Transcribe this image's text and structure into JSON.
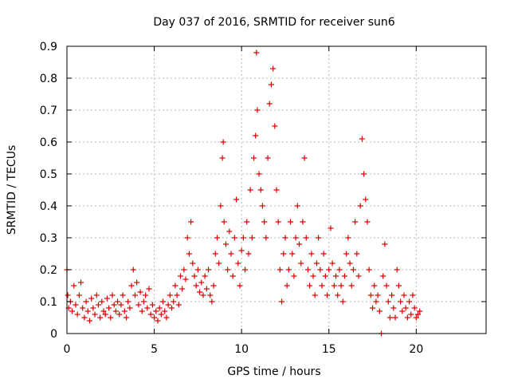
{
  "chart_data": {
    "type": "scatter",
    "title": "Day 037 of 2016, SRMTID for receiver sun6",
    "xlabel": "GPS time / hours",
    "ylabel": "SRMTID / TECUs",
    "xlim": [
      0,
      24
    ],
    "ylim": [
      0,
      0.9
    ],
    "xticks": [
      0,
      5,
      10,
      15,
      20
    ],
    "xtick_labels": [
      "0",
      "5",
      "10",
      "15",
      "20"
    ],
    "yticks": [
      0,
      0.1,
      0.2,
      0.3,
      0.4,
      0.5,
      0.6,
      0.7,
      0.8,
      0.9
    ],
    "ytick_labels": [
      "0",
      "0.1",
      "0.2",
      "0.3",
      "0.4",
      "0.5",
      "0.6",
      "0.7",
      "0.8",
      "0.9"
    ],
    "grid": true,
    "marker": "+",
    "series": [
      {
        "name": "SRMTID",
        "color": "#e00000",
        "points": [
          [
            0.0,
            0.2
          ],
          [
            0.05,
            0.12
          ],
          [
            0.1,
            0.08
          ],
          [
            0.2,
            0.1
          ],
          [
            0.3,
            0.07
          ],
          [
            0.4,
            0.15
          ],
          [
            0.5,
            0.09
          ],
          [
            0.6,
            0.06
          ],
          [
            0.7,
            0.12
          ],
          [
            0.8,
            0.16
          ],
          [
            0.9,
            0.08
          ],
          [
            1.0,
            0.05
          ],
          [
            1.1,
            0.1
          ],
          [
            1.2,
            0.07
          ],
          [
            1.3,
            0.04
          ],
          [
            1.4,
            0.11
          ],
          [
            1.5,
            0.08
          ],
          [
            1.6,
            0.06
          ],
          [
            1.7,
            0.12
          ],
          [
            1.8,
            0.09
          ],
          [
            1.9,
            0.05
          ],
          [
            2.0,
            0.1
          ],
          [
            2.1,
            0.07
          ],
          [
            2.2,
            0.06
          ],
          [
            2.3,
            0.11
          ],
          [
            2.4,
            0.08
          ],
          [
            2.5,
            0.05
          ],
          [
            2.6,
            0.12
          ],
          [
            2.7,
            0.09
          ],
          [
            2.8,
            0.07
          ],
          [
            2.9,
            0.1
          ],
          [
            3.0,
            0.06
          ],
          [
            3.1,
            0.09
          ],
          [
            3.2,
            0.12
          ],
          [
            3.3,
            0.07
          ],
          [
            3.4,
            0.05
          ],
          [
            3.5,
            0.1
          ],
          [
            3.6,
            0.08
          ],
          [
            3.7,
            0.15
          ],
          [
            3.8,
            0.2
          ],
          [
            3.9,
            0.12
          ],
          [
            4.0,
            0.16
          ],
          [
            4.1,
            0.09
          ],
          [
            4.2,
            0.13
          ],
          [
            4.3,
            0.07
          ],
          [
            4.4,
            0.1
          ],
          [
            4.5,
            0.12
          ],
          [
            4.6,
            0.08
          ],
          [
            4.7,
            0.14
          ],
          [
            4.8,
            0.06
          ],
          [
            4.9,
            0.09
          ],
          [
            5.0,
            0.05
          ],
          [
            5.1,
            0.07
          ],
          [
            5.2,
            0.04
          ],
          [
            5.3,
            0.08
          ],
          [
            5.4,
            0.06
          ],
          [
            5.5,
            0.1
          ],
          [
            5.6,
            0.07
          ],
          [
            5.7,
            0.05
          ],
          [
            5.8,
            0.09
          ],
          [
            5.9,
            0.12
          ],
          [
            6.0,
            0.08
          ],
          [
            6.1,
            0.1
          ],
          [
            6.2,
            0.15
          ],
          [
            6.3,
            0.12
          ],
          [
            6.4,
            0.09
          ],
          [
            6.5,
            0.18
          ],
          [
            6.6,
            0.14
          ],
          [
            6.7,
            0.2
          ],
          [
            6.8,
            0.17
          ],
          [
            6.9,
            0.3
          ],
          [
            7.0,
            0.25
          ],
          [
            7.1,
            0.35
          ],
          [
            7.2,
            0.22
          ],
          [
            7.3,
            0.18
          ],
          [
            7.4,
            0.15
          ],
          [
            7.5,
            0.2
          ],
          [
            7.6,
            0.13
          ],
          [
            7.7,
            0.16
          ],
          [
            7.8,
            0.12
          ],
          [
            7.9,
            0.18
          ],
          [
            8.0,
            0.14
          ],
          [
            8.1,
            0.2
          ],
          [
            8.2,
            0.12
          ],
          [
            8.3,
            0.1
          ],
          [
            8.4,
            0.15
          ],
          [
            8.5,
            0.25
          ],
          [
            8.6,
            0.3
          ],
          [
            8.7,
            0.22
          ],
          [
            8.8,
            0.4
          ],
          [
            8.9,
            0.55
          ],
          [
            8.95,
            0.6
          ],
          [
            9.0,
            0.35
          ],
          [
            9.1,
            0.28
          ],
          [
            9.2,
            0.2
          ],
          [
            9.3,
            0.32
          ],
          [
            9.4,
            0.25
          ],
          [
            9.5,
            0.18
          ],
          [
            9.6,
            0.3
          ],
          [
            9.7,
            0.42
          ],
          [
            9.8,
            0.22
          ],
          [
            9.9,
            0.15
          ],
          [
            10.0,
            0.26
          ],
          [
            10.1,
            0.3
          ],
          [
            10.2,
            0.2
          ],
          [
            10.3,
            0.35
          ],
          [
            10.4,
            0.25
          ],
          [
            10.5,
            0.45
          ],
          [
            10.6,
            0.3
          ],
          [
            10.7,
            0.55
          ],
          [
            10.8,
            0.62
          ],
          [
            10.85,
            0.88
          ],
          [
            10.9,
            0.7
          ],
          [
            11.0,
            0.5
          ],
          [
            11.1,
            0.45
          ],
          [
            11.2,
            0.4
          ],
          [
            11.3,
            0.35
          ],
          [
            11.4,
            0.3
          ],
          [
            11.5,
            0.55
          ],
          [
            11.6,
            0.72
          ],
          [
            11.7,
            0.78
          ],
          [
            11.8,
            0.83
          ],
          [
            11.9,
            0.65
          ],
          [
            12.0,
            0.45
          ],
          [
            12.1,
            0.35
          ],
          [
            12.2,
            0.2
          ],
          [
            12.3,
            0.1
          ],
          [
            12.4,
            0.25
          ],
          [
            12.5,
            0.3
          ],
          [
            12.6,
            0.15
          ],
          [
            12.7,
            0.2
          ],
          [
            12.8,
            0.35
          ],
          [
            12.9,
            0.25
          ],
          [
            13.0,
            0.18
          ],
          [
            13.1,
            0.3
          ],
          [
            13.2,
            0.4
          ],
          [
            13.3,
            0.28
          ],
          [
            13.4,
            0.22
          ],
          [
            13.5,
            0.35
          ],
          [
            13.6,
            0.55
          ],
          [
            13.7,
            0.3
          ],
          [
            13.8,
            0.2
          ],
          [
            13.9,
            0.15
          ],
          [
            14.0,
            0.25
          ],
          [
            14.1,
            0.18
          ],
          [
            14.2,
            0.12
          ],
          [
            14.3,
            0.22
          ],
          [
            14.4,
            0.3
          ],
          [
            14.5,
            0.2
          ],
          [
            14.6,
            0.15
          ],
          [
            14.7,
            0.25
          ],
          [
            14.8,
            0.18
          ],
          [
            14.9,
            0.12
          ],
          [
            15.0,
            0.2
          ],
          [
            15.1,
            0.33
          ],
          [
            15.2,
            0.22
          ],
          [
            15.3,
            0.15
          ],
          [
            15.4,
            0.18
          ],
          [
            15.5,
            0.12
          ],
          [
            15.6,
            0.2
          ],
          [
            15.7,
            0.15
          ],
          [
            15.8,
            0.1
          ],
          [
            15.9,
            0.18
          ],
          [
            16.0,
            0.25
          ],
          [
            16.1,
            0.3
          ],
          [
            16.2,
            0.22
          ],
          [
            16.3,
            0.15
          ],
          [
            16.4,
            0.2
          ],
          [
            16.5,
            0.35
          ],
          [
            16.6,
            0.25
          ],
          [
            16.7,
            0.18
          ],
          [
            16.8,
            0.4
          ],
          [
            16.9,
            0.61
          ],
          [
            17.0,
            0.5
          ],
          [
            17.1,
            0.42
          ],
          [
            17.2,
            0.35
          ],
          [
            17.3,
            0.2
          ],
          [
            17.4,
            0.12
          ],
          [
            17.5,
            0.08
          ],
          [
            17.6,
            0.15
          ],
          [
            17.7,
            0.1
          ],
          [
            17.8,
            0.12
          ],
          [
            17.9,
            0.07
          ],
          [
            18.0,
            0.0
          ],
          [
            18.1,
            0.18
          ],
          [
            18.2,
            0.28
          ],
          [
            18.3,
            0.15
          ],
          [
            18.4,
            0.1
          ],
          [
            18.5,
            0.05
          ],
          [
            18.6,
            0.12
          ],
          [
            18.7,
            0.08
          ],
          [
            18.8,
            0.05
          ],
          [
            18.9,
            0.2
          ],
          [
            19.0,
            0.15
          ],
          [
            19.1,
            0.1
          ],
          [
            19.2,
            0.07
          ],
          [
            19.3,
            0.12
          ],
          [
            19.4,
            0.08
          ],
          [
            19.5,
            0.05
          ],
          [
            19.6,
            0.1
          ],
          [
            19.7,
            0.06
          ],
          [
            19.8,
            0.12
          ],
          [
            19.9,
            0.08
          ],
          [
            20.0,
            0.05
          ],
          [
            20.1,
            0.06
          ],
          [
            20.2,
            0.07
          ]
        ]
      }
    ]
  }
}
